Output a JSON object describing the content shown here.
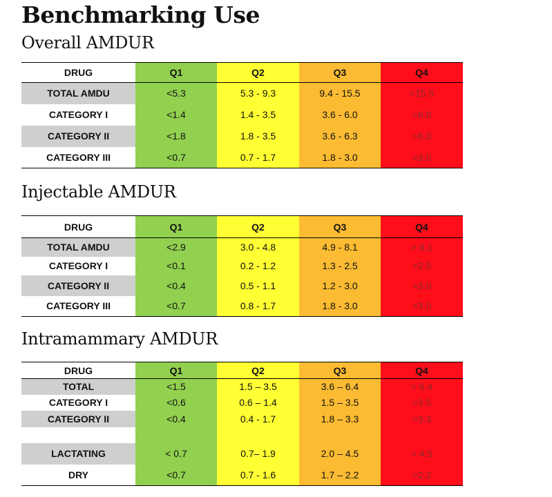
{
  "page_title": "Benchmarking Use",
  "header": {
    "drug": "DRUG",
    "q1": "Q1",
    "q2": "Q2",
    "q3": "Q3",
    "q4": "Q4"
  },
  "sections": [
    {
      "title": "Overall AMDUR",
      "rows": [
        {
          "drug": "TOTAL AMDU",
          "q1": "<5.3",
          "q2": "5.3 - 9.3",
          "q3": "9.4 - 15.5",
          "q4": ">15.5"
        },
        {
          "drug": "CATEGORY I",
          "q1": "<1.4",
          "q2": "1.4 - 3.5",
          "q3": "3.6 - 6.0",
          "q4": ">6.0"
        },
        {
          "drug": "CATEGORY II",
          "q1": "<1.8",
          "q2": "1.8 - 3.5",
          "q3": "3.6 - 6.3",
          "q4": ">6.3"
        },
        {
          "drug": "CATEGORY III",
          "q1": "<0.7",
          "q2": "0.7 - 1.7",
          "q3": "1.8 - 3.0",
          "q4": ">3.0"
        }
      ]
    },
    {
      "title": "Injectable AMDUR",
      "rows": [
        {
          "drug": "TOTAL AMDU",
          "q1": "<2.9",
          "q2": "3.0 - 4.8",
          "q3": "4.9 - 8.1",
          "q4": "> 8.1"
        },
        {
          "drug": "CATEGORY I",
          "q1": "<0.1",
          "q2": "0.2 - 1.2",
          "q3": "1.3 - 2.5",
          "q4": ">2.5"
        },
        {
          "drug": "CATEGORY II",
          "q1": "<0.4",
          "q2": "0.5 - 1.1",
          "q3": "1.2 - 3.0",
          "q4": ">3.0"
        },
        {
          "drug": "CATEGORY III",
          "q1": "<0.7",
          "q2": "0.8 - 1.7",
          "q3": "1.8 - 3.0",
          "q4": ">3.0"
        }
      ]
    },
    {
      "title": "Intramammary AMDUR",
      "rows": [
        {
          "drug": "TOTAL",
          "q1": "<1.5",
          "q2": "1.5 – 3.5",
          "q3": "3.6 – 6.4",
          "q4": "> 6.4"
        },
        {
          "drug": "CATEGORY I",
          "q1": "<0.6",
          "q2": "0.6 – 1.4",
          "q3": "1.5 – 3.5",
          "q4": ">3.5"
        },
        {
          "drug": "CATEGORY II",
          "q1": "<0.4",
          "q2": "0.4 - 1.7",
          "q3": "1.8 – 3.3",
          "q4": ">3.3"
        },
        {
          "drug": "",
          "q1": "",
          "q2": "",
          "q3": "",
          "q4": ""
        },
        {
          "drug": "LACTATING",
          "q1": "< 0.7",
          "q2": "0.7– 1.9",
          "q3": "2.0 – 4.5",
          "q4": "> 4.5"
        },
        {
          "drug": "DRY",
          "q1": "<0.7",
          "q2": "0.7 - 1.6",
          "q3": "1.7 – 2.2",
          "q4": ">2.2"
        }
      ]
    }
  ]
}
